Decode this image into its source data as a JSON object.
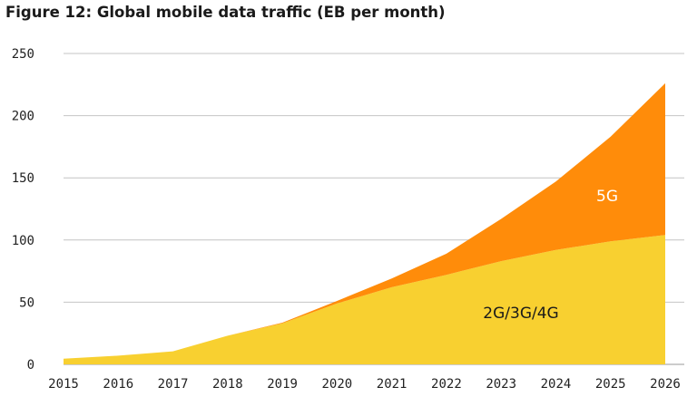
{
  "chart_data": {
    "type": "area",
    "stacked": true,
    "title": "Figure 12: Global mobile data traffic (EB per month)",
    "xlabel": "",
    "ylabel": "",
    "x": [
      2015,
      2016,
      2017,
      2018,
      2019,
      2020,
      2021,
      2022,
      2023,
      2024,
      2025,
      2026
    ],
    "ylim": [
      0,
      250
    ],
    "yticks": [
      0,
      50,
      100,
      150,
      200,
      250
    ],
    "grid": true,
    "legend": "none",
    "series": [
      {
        "name": "2G/3G/4G",
        "color": "#F8D030",
        "values": [
          4.5,
          7,
          10.5,
          23,
          33,
          49,
          62,
          72,
          83,
          92,
          99,
          104
        ]
      },
      {
        "name": "5G",
        "color": "#FF8C0A",
        "values": [
          0,
          0,
          0,
          0,
          0.5,
          2,
          7,
          17,
          34,
          55,
          84,
          122
        ]
      }
    ],
    "series_label_color": {
      "2G/3G/4G": "#1a1a1a",
      "5G": "#ffffff"
    }
  }
}
